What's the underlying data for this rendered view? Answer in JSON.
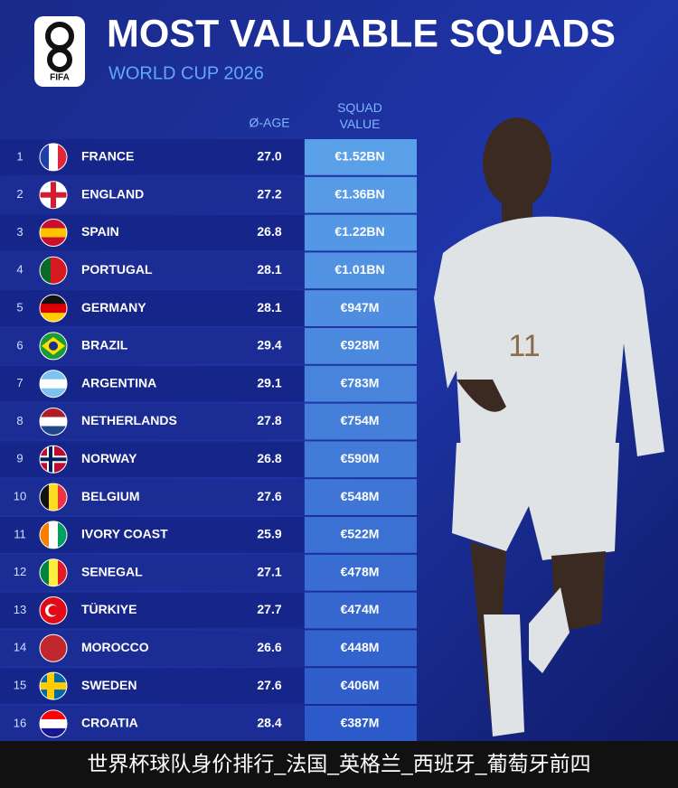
{
  "logo": {
    "text": "FIFA"
  },
  "header": {
    "title": "MOST VALUABLE SQUADS",
    "subtitle": "WORLD CUP 2026"
  },
  "table": {
    "columns": [
      "Ø-AGE",
      "SQUAD VALUE"
    ],
    "rows": [
      [
        1,
        "FRANCE",
        "27.0",
        "€1.52BN"
      ],
      [
        2,
        "ENGLAND",
        "27.2",
        "€1.36BN"
      ],
      [
        3,
        "SPAIN",
        "26.8",
        "€1.22BN"
      ],
      [
        4,
        "PORTUGAL",
        "28.1",
        "€1.01BN"
      ],
      [
        5,
        "GERMANY",
        "28.1",
        "€947M"
      ],
      [
        6,
        "BRAZIL",
        "29.4",
        "€928M"
      ],
      [
        7,
        "ARGENTINA",
        "29.1",
        "€783M"
      ],
      [
        8,
        "NETHERLANDS",
        "27.8",
        "€754M"
      ],
      [
        9,
        "NORWAY",
        "26.8",
        "€590M"
      ],
      [
        10,
        "BELGIUM",
        "27.6",
        "€548M"
      ],
      [
        11,
        "IVORY COAST",
        "25.9",
        "€522M"
      ],
      [
        12,
        "SENEGAL",
        "27.1",
        "€478M"
      ],
      [
        13,
        "TÜRKIYE",
        "27.7",
        "€474M"
      ],
      [
        14,
        "MOROCCO",
        "26.6",
        "€448M"
      ],
      [
        15,
        "SWEDEN",
        "27.6",
        "€406M"
      ],
      [
        16,
        "CROATIA",
        "28.4",
        "€387M"
      ]
    ]
  },
  "caption": "世界杯球队身价排行_法国_英格兰_西班牙_葡萄牙前四"
}
